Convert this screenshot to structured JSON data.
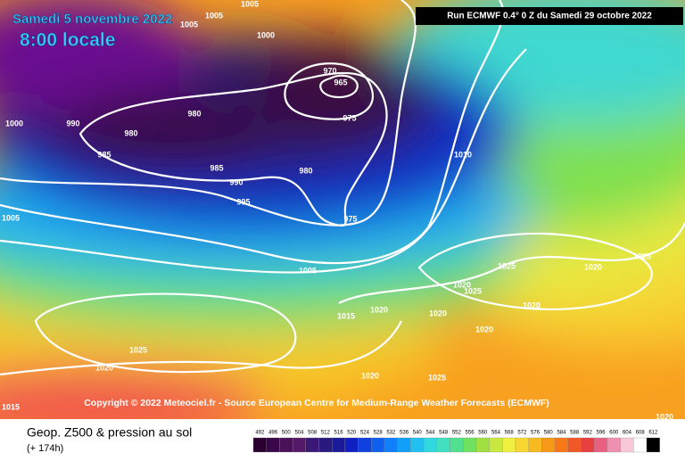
{
  "header": {
    "date": "Samedi 5 novembre 2022",
    "time": "8:00 locale",
    "run": "Run ECMWF 0.4° 0 Z du Samedi 29 octobre 2022"
  },
  "copyright": "Copyright © 2022 Meteociel.fr - Source European Centre for Medium-Range Weather Forecasts (ECMWF)",
  "footer": {
    "title": "Geop. Z500 & pression au sol",
    "lead": "(+ 174h)"
  },
  "isobar_labels": [
    "1005",
    "1005",
    "1005",
    "1000",
    "970",
    "965",
    "980",
    "990",
    "1000",
    "980",
    "985",
    "975",
    "985",
    "980",
    "990",
    "995",
    "975",
    "1005",
    "1010",
    "1005",
    "1025",
    "1020",
    "1025",
    "1020",
    "1025",
    "1020",
    "1015",
    "1020",
    "1020",
    "1020",
    "1025",
    "1020",
    "1020",
    "1025",
    "1015",
    "1020"
  ],
  "scale": {
    "labels": [
      "492",
      "496",
      "500",
      "504",
      "508",
      "512",
      "516",
      "520",
      "524",
      "528",
      "532",
      "536",
      "540",
      "544",
      "548",
      "552",
      "556",
      "560",
      "564",
      "568",
      "572",
      "576",
      "580",
      "584",
      "588",
      "592",
      "596",
      "600",
      "604",
      "608",
      "612"
    ],
    "colors": [
      "#2a0030",
      "#3a0848",
      "#4a1058",
      "#561868",
      "#3a1878",
      "#2a1a80",
      "#1a1a9a",
      "#1020c0",
      "#1040e0",
      "#1060f0",
      "#1080f8",
      "#10a0f8",
      "#20c0f0",
      "#30d8e0",
      "#40e0c0",
      "#50e090",
      "#70e060",
      "#a0e040",
      "#c8e840",
      "#f0f040",
      "#f8d830",
      "#f8b820",
      "#f89818",
      "#f87818",
      "#f05828",
      "#e84040",
      "#e86080",
      "#f090b0",
      "#f8c8d8",
      "#ffffff",
      "#000000"
    ]
  }
}
